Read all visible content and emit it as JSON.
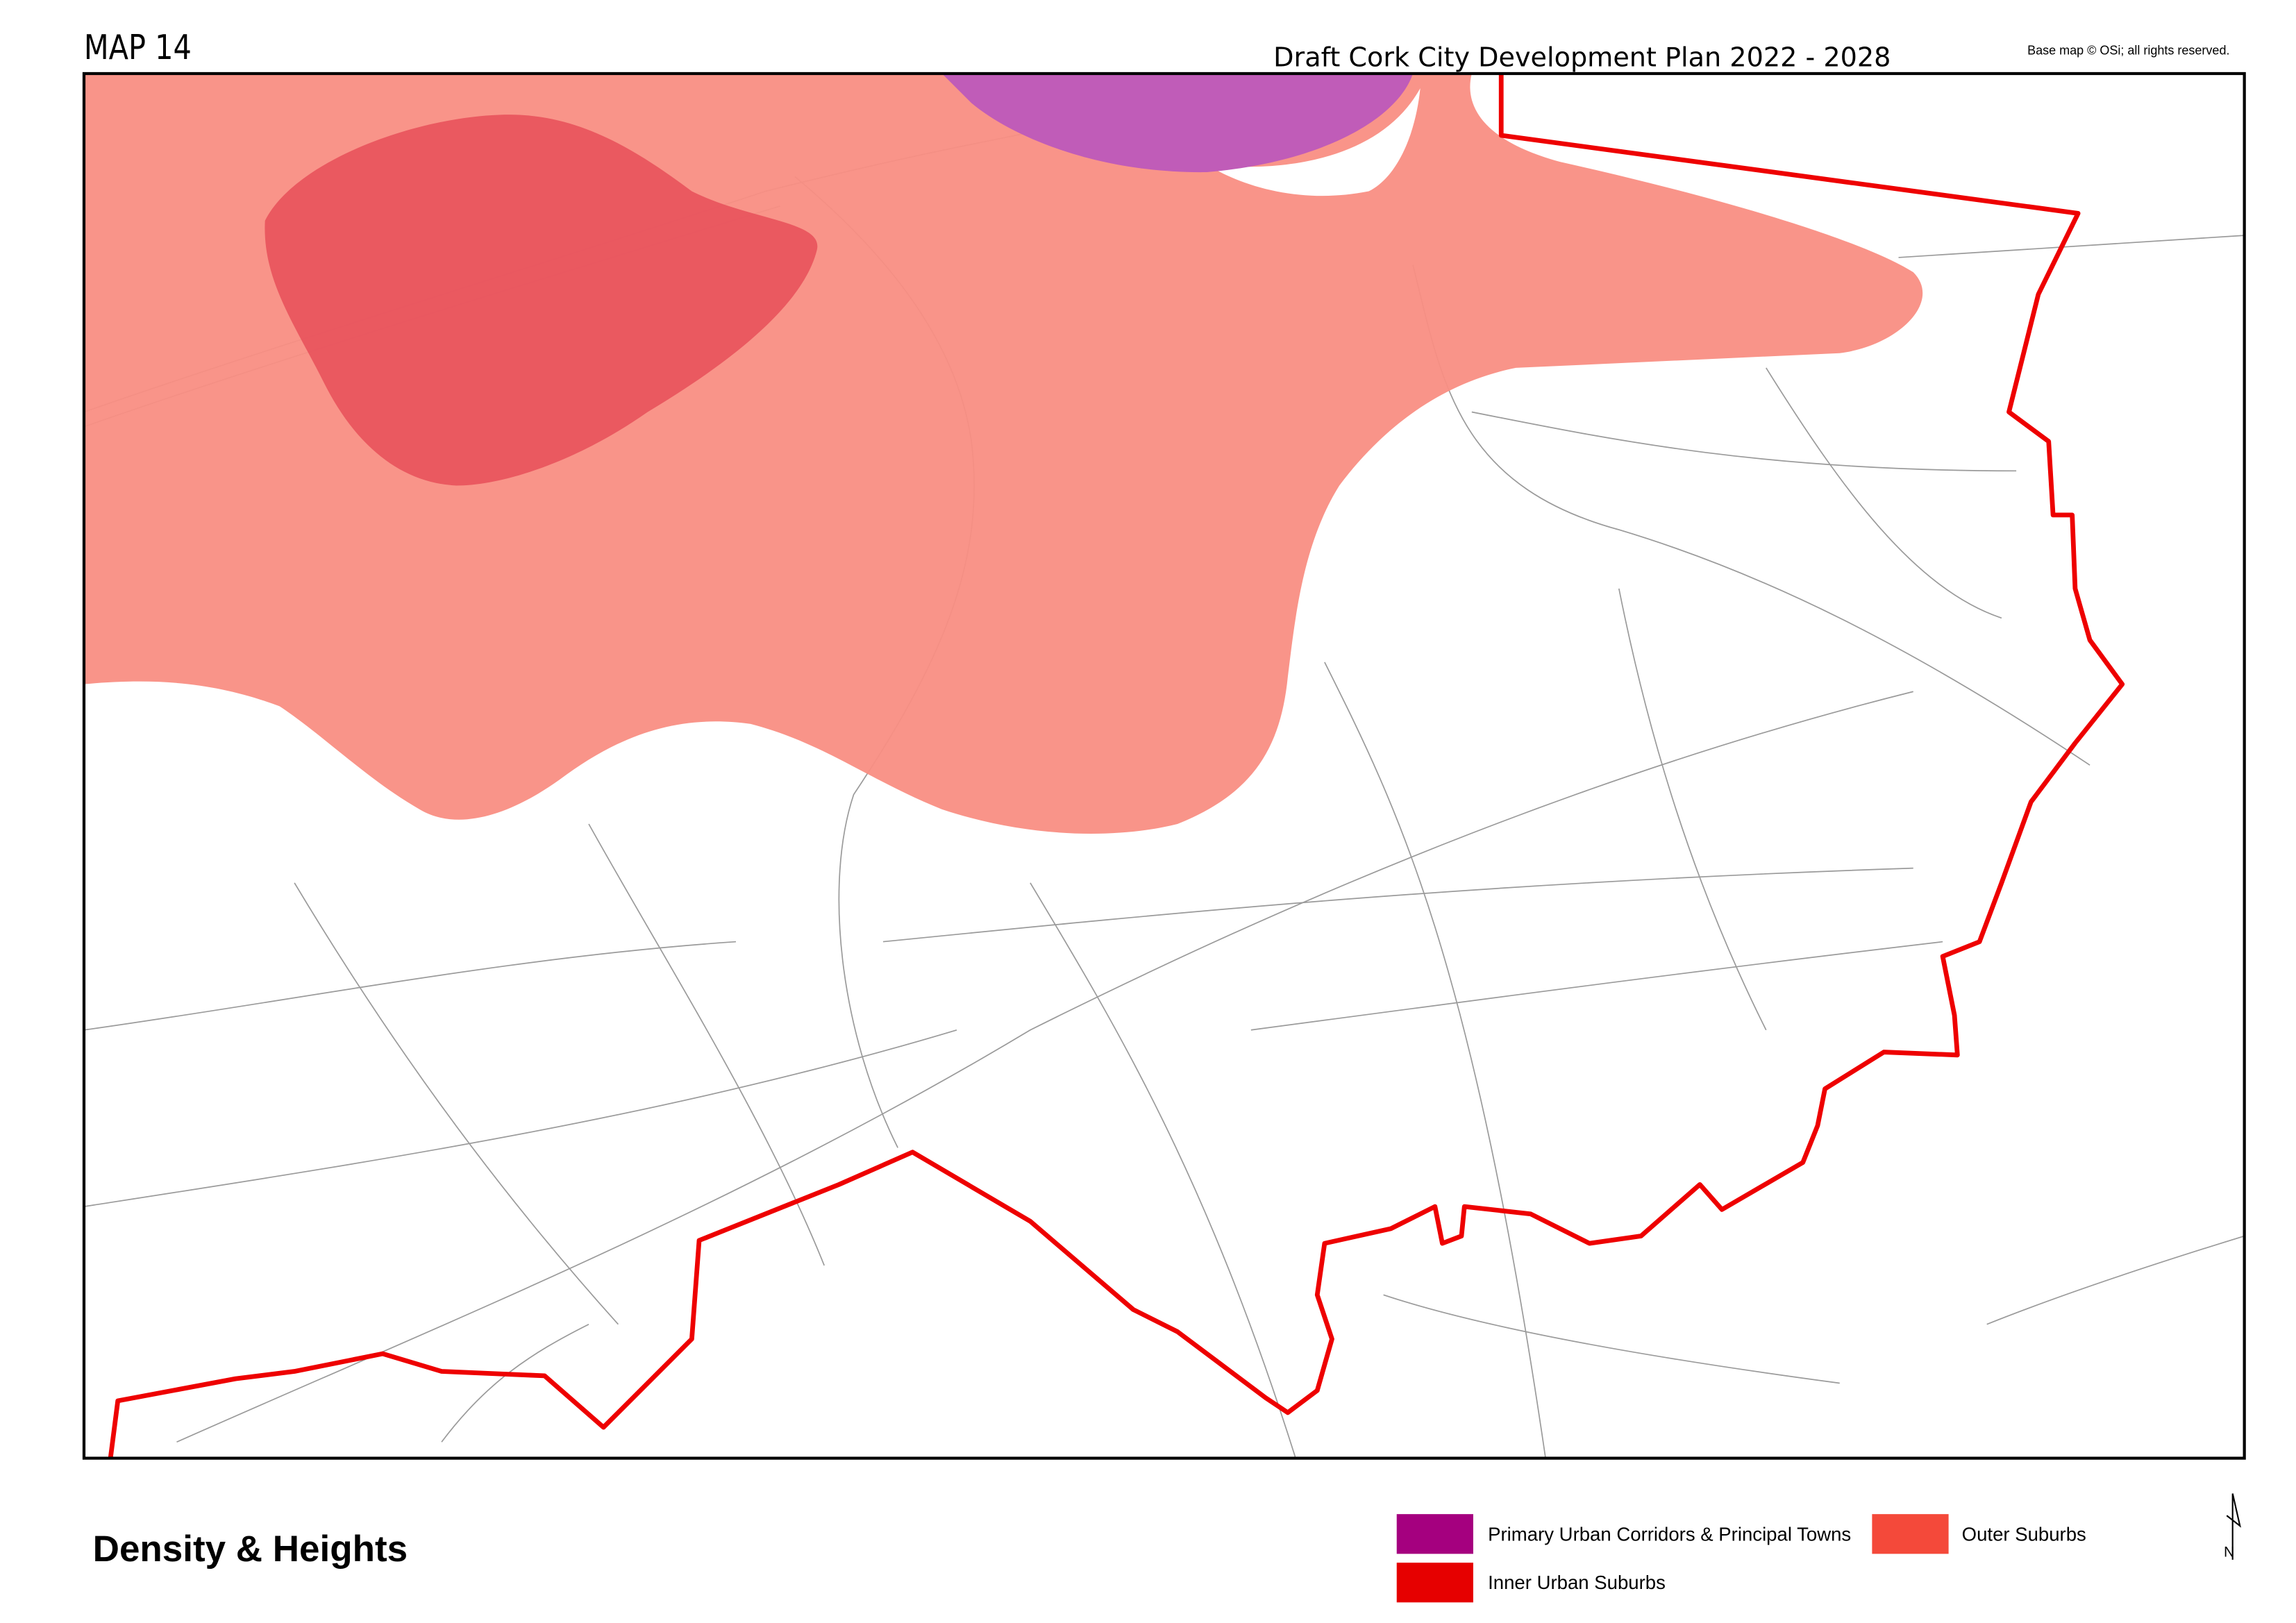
{
  "header": {
    "map_number": "MAP 14",
    "plan_title": "Draft Cork City Development Plan 2022 - 2028",
    "copyright": "Base map © OSi; all rights reserved."
  },
  "map_title": "Density & Heights",
  "legend": [
    {
      "label": "Primary Urban Corridors & Principal Towns",
      "color": "#a5007f"
    },
    {
      "label": "Outer Suburbs",
      "color": "#f4493a"
    },
    {
      "label": "Inner Urban Suburbs",
      "color": "#e60000"
    }
  ],
  "north_arrow": {
    "label": "N"
  },
  "colors": {
    "outer_suburbs_fill": "#f98e83",
    "inner_suburbs_fill": "#e8525c",
    "primary_corridor_fill": "#c05cb8",
    "boundary": "#ee0000"
  }
}
